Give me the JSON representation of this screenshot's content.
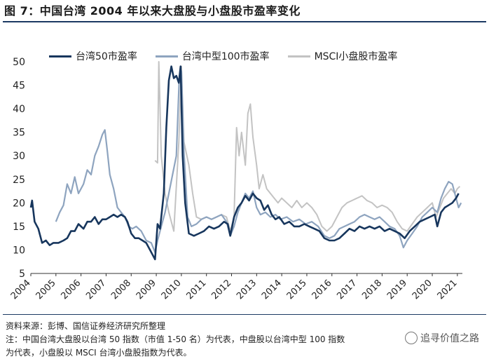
{
  "title": "图 7：中国台湾 2004 年以来大盘股与小盘股市盈率变化",
  "source_note": "资料来源：彭博、国信证券经济研究所整理",
  "footnote_line1": "注：中国台湾大盘股以台湾 50 指数（市值 1-50 名）为代表，中盘股以台湾中型 100 指数",
  "footnote_line2": "为代表，小盘股以 MSCI 台湾小盘股指数为代表。",
  "watermark": "追寻价值之路",
  "colors": {
    "large": "#17365d",
    "mid": "#8ea4bf",
    "small": "#c3c3c3",
    "rule": "#1c3a63"
  },
  "chart_data": {
    "type": "line",
    "title": "",
    "xlabel": "",
    "ylabel": "",
    "xlim": [
      2004,
      2021.2
    ],
    "ylim": [
      5,
      50
    ],
    "xticks": [
      "2004",
      "2005",
      "2006",
      "2007",
      "2008",
      "2009",
      "2010",
      "2011",
      "2012",
      "2013",
      "2014",
      "2015",
      "2016",
      "2017",
      "2018",
      "2019",
      "2020",
      "2021"
    ],
    "yticks": [
      "5",
      "10",
      "15",
      "20",
      "25",
      "30",
      "35",
      "40",
      "45",
      "50"
    ],
    "legend_position": "top",
    "series": [
      {
        "name": "台湾50市盈率",
        "key": "large",
        "points": [
          [
            2004.0,
            19
          ],
          [
            2004.05,
            20.5
          ],
          [
            2004.15,
            16
          ],
          [
            2004.3,
            14.5
          ],
          [
            2004.45,
            11.5
          ],
          [
            2004.6,
            12
          ],
          [
            2004.75,
            11
          ],
          [
            2004.9,
            11.5
          ],
          [
            2005.1,
            11.5
          ],
          [
            2005.3,
            12
          ],
          [
            2005.45,
            12.5
          ],
          [
            2005.6,
            14
          ],
          [
            2005.75,
            14
          ],
          [
            2005.9,
            15.5
          ],
          [
            2006.1,
            14.5
          ],
          [
            2006.25,
            16
          ],
          [
            2006.4,
            16
          ],
          [
            2006.55,
            17
          ],
          [
            2006.7,
            15.5
          ],
          [
            2006.85,
            16.5
          ],
          [
            2007.0,
            16.5
          ],
          [
            2007.15,
            17
          ],
          [
            2007.3,
            17.5
          ],
          [
            2007.45,
            17
          ],
          [
            2007.6,
            17.5
          ],
          [
            2007.75,
            17
          ],
          [
            2007.85,
            16
          ],
          [
            2008.0,
            13.5
          ],
          [
            2008.15,
            12.5
          ],
          [
            2008.3,
            12.5
          ],
          [
            2008.45,
            12
          ],
          [
            2008.6,
            11.5
          ],
          [
            2008.75,
            10
          ],
          [
            2008.85,
            9
          ],
          [
            2008.95,
            8
          ],
          [
            2009.05,
            15.5
          ],
          [
            2009.15,
            14.5
          ],
          [
            2009.3,
            22
          ],
          [
            2009.4,
            36
          ],
          [
            2009.5,
            46
          ],
          [
            2009.6,
            49
          ],
          [
            2009.7,
            46.5
          ],
          [
            2009.8,
            47
          ],
          [
            2009.9,
            45.5
          ],
          [
            2009.97,
            49
          ],
          [
            2010.05,
            30
          ],
          [
            2010.15,
            20
          ],
          [
            2010.3,
            13.5
          ],
          [
            2010.5,
            13
          ],
          [
            2010.7,
            13.5
          ],
          [
            2010.9,
            14
          ],
          [
            2011.1,
            15
          ],
          [
            2011.3,
            14.5
          ],
          [
            2011.5,
            15
          ],
          [
            2011.7,
            16
          ],
          [
            2011.85,
            15.5
          ],
          [
            2011.95,
            13
          ],
          [
            2012.1,
            17
          ],
          [
            2012.25,
            19
          ],
          [
            2012.4,
            20
          ],
          [
            2012.55,
            21.5
          ],
          [
            2012.7,
            20.5
          ],
          [
            2012.85,
            22
          ],
          [
            2013.0,
            21
          ],
          [
            2013.15,
            20.5
          ],
          [
            2013.3,
            18.5
          ],
          [
            2013.45,
            19.5
          ],
          [
            2013.6,
            17.5
          ],
          [
            2013.75,
            16.5
          ],
          [
            2013.9,
            17
          ],
          [
            2014.1,
            15.5
          ],
          [
            2014.3,
            16
          ],
          [
            2014.5,
            15
          ],
          [
            2014.7,
            15
          ],
          [
            2014.9,
            15.5
          ],
          [
            2015.1,
            15
          ],
          [
            2015.3,
            14.5
          ],
          [
            2015.5,
            14
          ],
          [
            2015.7,
            12.5
          ],
          [
            2015.9,
            12
          ],
          [
            2016.1,
            12
          ],
          [
            2016.3,
            12.5
          ],
          [
            2016.5,
            13.5
          ],
          [
            2016.7,
            14.5
          ],
          [
            2016.9,
            14
          ],
          [
            2017.1,
            15
          ],
          [
            2017.3,
            14.5
          ],
          [
            2017.5,
            15
          ],
          [
            2017.7,
            14.5
          ],
          [
            2017.9,
            15
          ],
          [
            2018.1,
            14
          ],
          [
            2018.3,
            14.5
          ],
          [
            2018.5,
            14
          ],
          [
            2018.7,
            13.5
          ],
          [
            2018.9,
            12.5
          ],
          [
            2019.1,
            14
          ],
          [
            2019.3,
            15
          ],
          [
            2019.5,
            16
          ],
          [
            2019.7,
            16.5
          ],
          [
            2019.9,
            17
          ],
          [
            2020.1,
            17.5
          ],
          [
            2020.2,
            15
          ],
          [
            2020.35,
            18
          ],
          [
            2020.5,
            19
          ],
          [
            2020.65,
            19.5
          ],
          [
            2020.8,
            20
          ],
          [
            2020.95,
            21
          ],
          [
            2021.05,
            22
          ]
        ]
      },
      {
        "name": "台湾中型100市盈率",
        "key": "mid",
        "points": [
          [
            2005.0,
            16
          ],
          [
            2005.15,
            18
          ],
          [
            2005.3,
            19.5
          ],
          [
            2005.45,
            24
          ],
          [
            2005.6,
            22
          ],
          [
            2005.75,
            25.5
          ],
          [
            2005.9,
            22
          ],
          [
            2006.1,
            24
          ],
          [
            2006.25,
            27
          ],
          [
            2006.4,
            26
          ],
          [
            2006.55,
            30
          ],
          [
            2006.7,
            32
          ],
          [
            2006.85,
            34.5
          ],
          [
            2006.95,
            35.5
          ],
          [
            2007.05,
            31
          ],
          [
            2007.15,
            26
          ],
          [
            2007.3,
            23
          ],
          [
            2007.45,
            19
          ],
          [
            2007.6,
            18
          ],
          [
            2007.75,
            17
          ],
          [
            2007.9,
            15
          ],
          [
            2008.05,
            14.5
          ],
          [
            2008.2,
            15
          ],
          [
            2008.4,
            14
          ],
          [
            2008.6,
            12
          ],
          [
            2008.8,
            11.5
          ],
          [
            2008.95,
            9.5
          ],
          [
            2009.05,
            12
          ],
          [
            2009.2,
            15
          ],
          [
            2009.35,
            18
          ],
          [
            2009.5,
            22
          ],
          [
            2009.65,
            26
          ],
          [
            2009.8,
            30
          ],
          [
            2009.92,
            47
          ],
          [
            2010.0,
            48
          ],
          [
            2010.1,
            31
          ],
          [
            2010.25,
            17
          ],
          [
            2010.4,
            15
          ],
          [
            2010.6,
            15.5
          ],
          [
            2010.8,
            16.5
          ],
          [
            2011.0,
            17
          ],
          [
            2011.2,
            16.5
          ],
          [
            2011.4,
            17
          ],
          [
            2011.6,
            17.5
          ],
          [
            2011.8,
            16
          ],
          [
            2011.95,
            13
          ],
          [
            2012.1,
            15
          ],
          [
            2012.25,
            18
          ],
          [
            2012.4,
            20
          ],
          [
            2012.55,
            22
          ],
          [
            2012.7,
            21
          ],
          [
            2012.85,
            22.5
          ],
          [
            2013.0,
            19
          ],
          [
            2013.15,
            17.5
          ],
          [
            2013.35,
            18
          ],
          [
            2013.55,
            17
          ],
          [
            2013.75,
            17.5
          ],
          [
            2013.95,
            16.5
          ],
          [
            2014.2,
            17
          ],
          [
            2014.45,
            16
          ],
          [
            2014.7,
            16.5
          ],
          [
            2014.95,
            15.5
          ],
          [
            2015.2,
            16
          ],
          [
            2015.45,
            15
          ],
          [
            2015.7,
            13
          ],
          [
            2015.9,
            12.5
          ],
          [
            2016.1,
            13
          ],
          [
            2016.3,
            14.5
          ],
          [
            2016.5,
            15
          ],
          [
            2016.7,
            15.5
          ],
          [
            2016.9,
            16
          ],
          [
            2017.1,
            17
          ],
          [
            2017.3,
            17.5
          ],
          [
            2017.5,
            17
          ],
          [
            2017.7,
            16.5
          ],
          [
            2017.9,
            17
          ],
          [
            2018.1,
            16
          ],
          [
            2018.3,
            15
          ],
          [
            2018.5,
            14.5
          ],
          [
            2018.7,
            13
          ],
          [
            2018.85,
            10.5
          ],
          [
            2019.0,
            12
          ],
          [
            2019.2,
            13.5
          ],
          [
            2019.4,
            15
          ],
          [
            2019.6,
            17
          ],
          [
            2019.8,
            18
          ],
          [
            2020.0,
            19
          ],
          [
            2020.2,
            18
          ],
          [
            2020.35,
            21
          ],
          [
            2020.5,
            23
          ],
          [
            2020.65,
            24.5
          ],
          [
            2020.8,
            24
          ],
          [
            2020.95,
            21
          ],
          [
            2021.05,
            19
          ],
          [
            2021.15,
            20
          ]
        ]
      },
      {
        "name": "MSCI小盘股市盈率",
        "key": "small",
        "points": [
          [
            2008.95,
            29
          ],
          [
            2009.05,
            28.5
          ],
          [
            2009.1,
            50
          ],
          [
            2009.2,
            30
          ],
          [
            2009.35,
            22
          ],
          [
            2009.5,
            18
          ],
          [
            2009.7,
            14
          ],
          [
            2009.9,
            33
          ],
          [
            2010.0,
            49
          ],
          [
            2010.1,
            33
          ],
          [
            2010.3,
            28
          ],
          [
            2010.45,
            22
          ],
          [
            2010.6,
            17
          ],
          [
            2010.8,
            16.5
          ],
          [
            2011.0,
            17
          ],
          [
            2011.2,
            16.5
          ],
          [
            2011.4,
            17
          ],
          [
            2011.6,
            17.5
          ],
          [
            2011.8,
            17
          ],
          [
            2011.95,
            14
          ],
          [
            2012.1,
            17
          ],
          [
            2012.2,
            36
          ],
          [
            2012.3,
            30
          ],
          [
            2012.4,
            35
          ],
          [
            2012.55,
            28
          ],
          [
            2012.65,
            39
          ],
          [
            2012.75,
            41
          ],
          [
            2012.85,
            34
          ],
          [
            2013.0,
            28
          ],
          [
            2013.1,
            23
          ],
          [
            2013.25,
            26
          ],
          [
            2013.4,
            23
          ],
          [
            2013.55,
            22
          ],
          [
            2013.7,
            21
          ],
          [
            2013.85,
            20
          ],
          [
            2014.0,
            21
          ],
          [
            2014.2,
            20
          ],
          [
            2014.4,
            19
          ],
          [
            2014.6,
            20.5
          ],
          [
            2014.8,
            19
          ],
          [
            2015.0,
            20
          ],
          [
            2015.2,
            19
          ],
          [
            2015.4,
            17.5
          ],
          [
            2015.6,
            15
          ],
          [
            2015.8,
            14
          ],
          [
            2016.0,
            15
          ],
          [
            2016.2,
            17
          ],
          [
            2016.4,
            19
          ],
          [
            2016.6,
            20
          ],
          [
            2016.8,
            20.5
          ],
          [
            2017.0,
            21
          ],
          [
            2017.2,
            21.5
          ],
          [
            2017.4,
            20.5
          ],
          [
            2017.6,
            20
          ],
          [
            2017.8,
            19
          ],
          [
            2018.0,
            19.5
          ],
          [
            2018.2,
            19
          ],
          [
            2018.4,
            18
          ],
          [
            2018.6,
            16
          ],
          [
            2018.8,
            14.5
          ],
          [
            2019.0,
            14
          ],
          [
            2019.2,
            15.5
          ],
          [
            2019.4,
            17
          ],
          [
            2019.6,
            18
          ],
          [
            2019.8,
            19
          ],
          [
            2020.0,
            20
          ],
          [
            2020.15,
            17
          ],
          [
            2020.3,
            19
          ],
          [
            2020.45,
            21
          ],
          [
            2020.6,
            22
          ],
          [
            2020.75,
            23
          ],
          [
            2020.9,
            22
          ],
          [
            2021.0,
            23
          ],
          [
            2021.1,
            23.5
          ]
        ]
      }
    ]
  }
}
